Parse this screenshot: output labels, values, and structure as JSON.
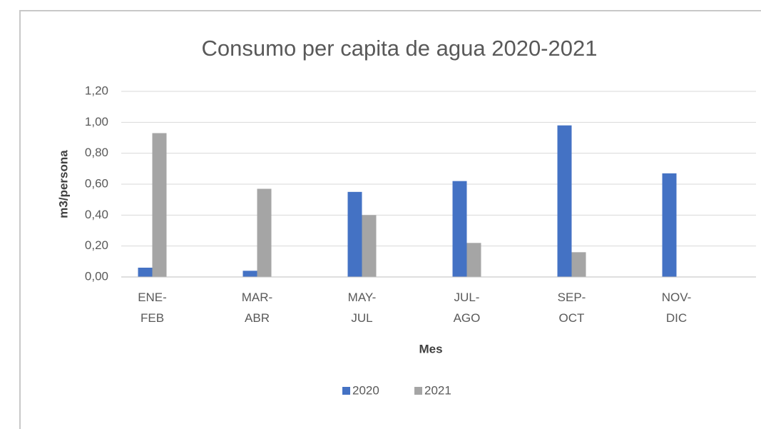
{
  "chart_data": {
    "type": "bar",
    "title": "Consumo per capita de agua 2020-2021",
    "x_label": "Mes",
    "y_label": "m3/persona",
    "categories": [
      "ENE-FEB",
      "MAR-ABR",
      "MAY-JUL",
      "JUL-AGO",
      "SEP-OCT",
      "NOV-DIC"
    ],
    "series": [
      {
        "name": "2020",
        "color": "#4472c4",
        "values": [
          0.06,
          0.04,
          0.55,
          0.62,
          0.98,
          0.67
        ]
      },
      {
        "name": "2021",
        "color": "#a5a5a5",
        "values": [
          0.93,
          0.57,
          0.4,
          0.22,
          0.16,
          null
        ]
      }
    ],
    "ylim": [
      0,
      1.2
    ],
    "yticks": [
      {
        "value": 0,
        "label": "0,00"
      },
      {
        "value": 0.2,
        "label": "0,20"
      },
      {
        "value": 0.4,
        "label": "0,40"
      },
      {
        "value": 0.6,
        "label": "0,60"
      },
      {
        "value": 0.8,
        "label": "0,80"
      },
      {
        "value": 1.0,
        "label": "1,00"
      },
      {
        "value": 1.2,
        "label": "1,20"
      }
    ],
    "grid": true,
    "legend": "bottom"
  }
}
